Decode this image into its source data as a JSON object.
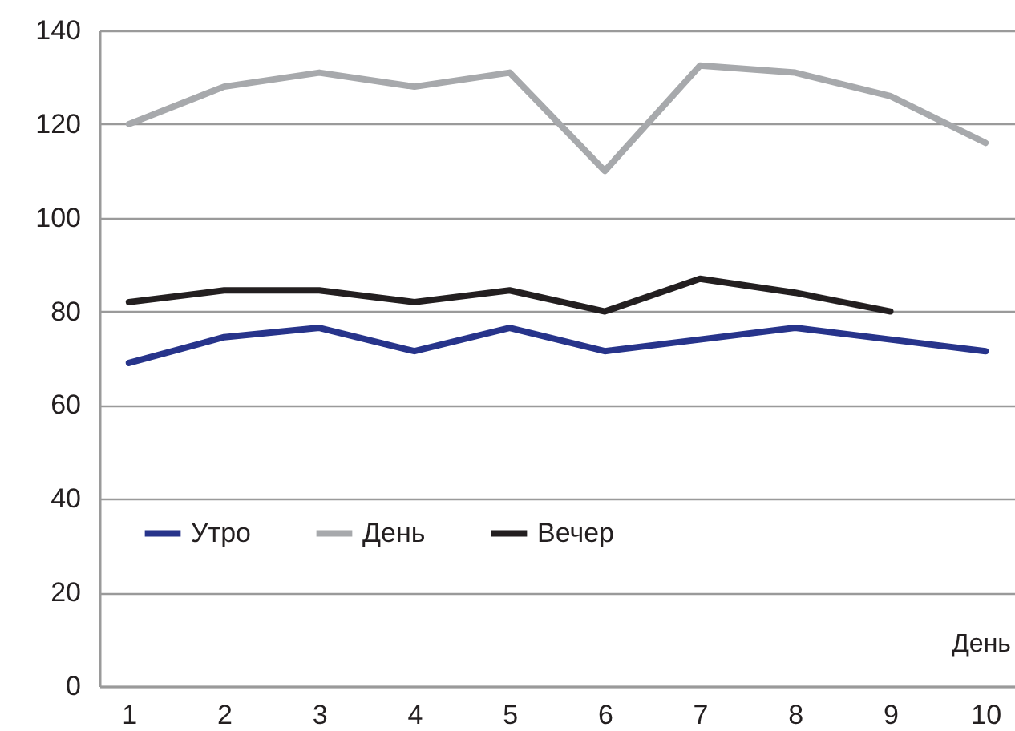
{
  "chart_data": {
    "type": "line",
    "xlabel": "День",
    "categories": [
      "1",
      "2",
      "3",
      "4",
      "5",
      "6",
      "7",
      "8",
      "9",
      "10"
    ],
    "series": [
      {
        "name": "Утро",
        "color": "#27348b",
        "values": [
          69,
          74.5,
          76.5,
          71.5,
          76.5,
          71.5,
          74,
          76.5,
          74,
          71.5
        ]
      },
      {
        "name": "День",
        "color": "#a7a9ac",
        "values": [
          120,
          128,
          131,
          128,
          131,
          110,
          132.5,
          131,
          126,
          116
        ]
      },
      {
        "name": "Вечер",
        "color": "#231f20",
        "values": [
          82,
          84.5,
          84.5,
          82,
          84.5,
          80,
          87,
          84,
          80,
          null
        ]
      }
    ],
    "ylim": [
      0,
      140
    ],
    "yticks": [
      0,
      20,
      40,
      60,
      80,
      100,
      120,
      140
    ],
    "grid": "y",
    "legend": "bottom left",
    "marker": "none",
    "line_style": "solid"
  }
}
